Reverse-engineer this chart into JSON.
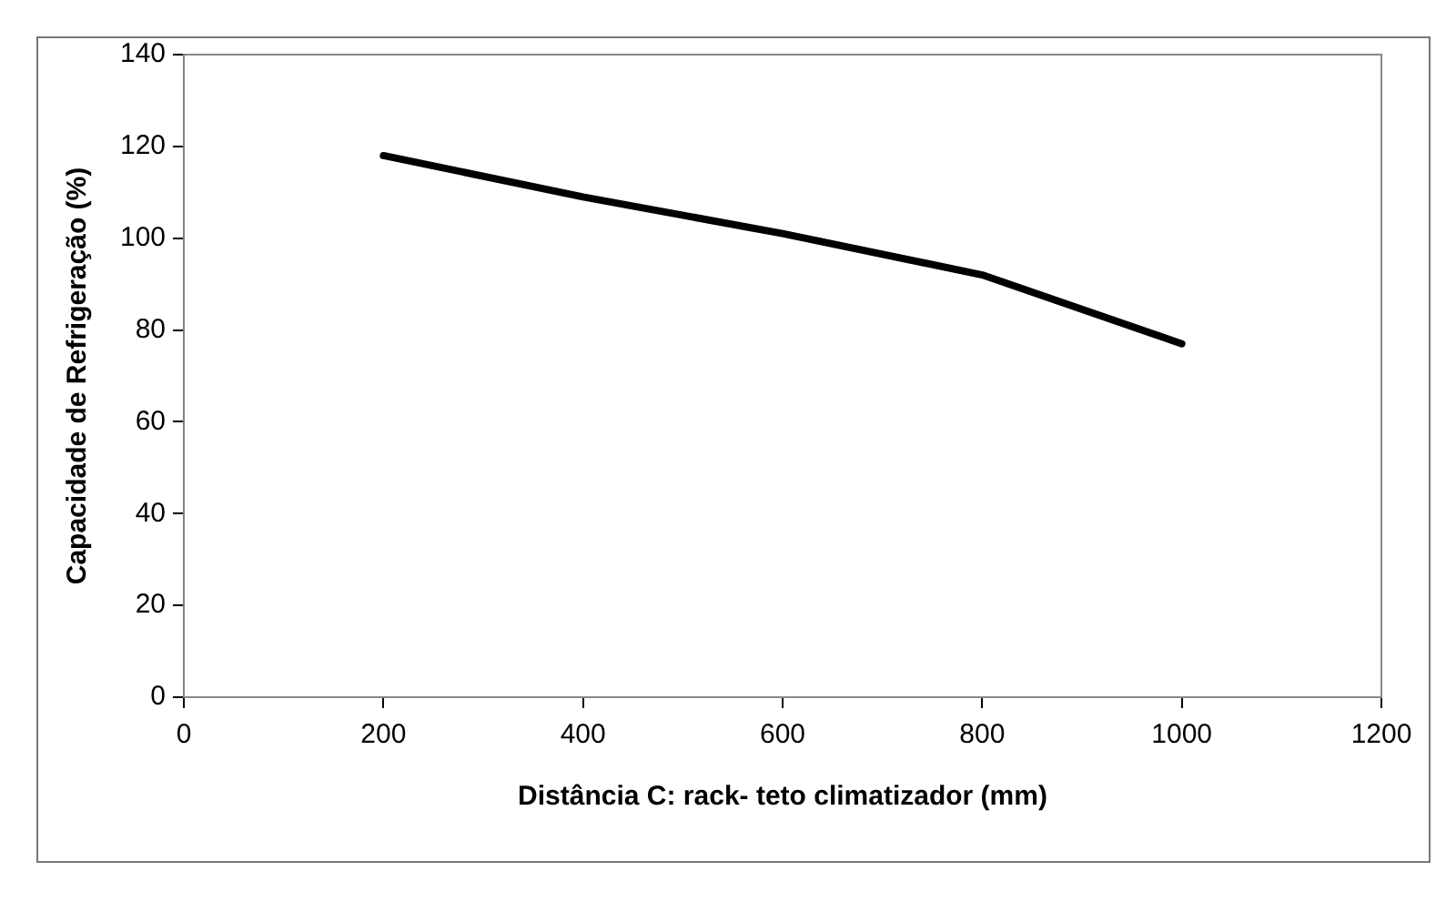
{
  "chart_data": {
    "type": "line",
    "xlabel": "Distância C: rack- teto climatizador (mm)",
    "ylabel": "Capacidade de Refrigeração (%)",
    "x": [
      200,
      400,
      600,
      800,
      1000
    ],
    "series": [
      {
        "color": "#000000",
        "values": [
          118,
          109,
          101,
          92,
          77
        ]
      }
    ],
    "xlim": [
      0,
      1200
    ],
    "xticks": [
      0,
      200,
      400,
      600,
      800,
      1000,
      1200
    ],
    "ylim": [
      0,
      140
    ],
    "yticks": [
      0,
      20,
      40,
      60,
      80,
      100,
      120,
      140
    ],
    "grid": false,
    "legend": false,
    "marker": "none",
    "line_style": "solid"
  }
}
